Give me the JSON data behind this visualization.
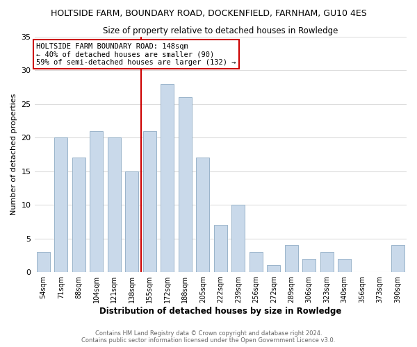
{
  "title": "HOLTSIDE FARM, BOUNDARY ROAD, DOCKENFIELD, FARNHAM, GU10 4ES",
  "subtitle": "Size of property relative to detached houses in Rowledge",
  "xlabel": "Distribution of detached houses by size in Rowledge",
  "ylabel": "Number of detached properties",
  "bar_labels": [
    "54sqm",
    "71sqm",
    "88sqm",
    "104sqm",
    "121sqm",
    "138sqm",
    "155sqm",
    "172sqm",
    "188sqm",
    "205sqm",
    "222sqm",
    "239sqm",
    "256sqm",
    "272sqm",
    "289sqm",
    "306sqm",
    "323sqm",
    "340sqm",
    "356sqm",
    "373sqm",
    "390sqm"
  ],
  "bar_values": [
    3,
    20,
    17,
    21,
    20,
    15,
    21,
    28,
    26,
    17,
    7,
    10,
    3,
    1,
    4,
    2,
    3,
    2,
    0,
    0,
    4
  ],
  "bar_color": "#c9d9ea",
  "bar_edgecolor": "#9ab4ca",
  "vline_x": 5.5,
  "vline_color": "#cc0000",
  "annotation_title": "HOLTSIDE FARM BOUNDARY ROAD: 148sqm",
  "annotation_line1": "← 40% of detached houses are smaller (90)",
  "annotation_line2": "59% of semi-detached houses are larger (132) →",
  "annotation_box_color": "#ffffff",
  "annotation_box_edgecolor": "#cc0000",
  "ylim": [
    0,
    35
  ],
  "yticks": [
    0,
    5,
    10,
    15,
    20,
    25,
    30,
    35
  ],
  "footer1": "Contains HM Land Registry data © Crown copyright and database right 2024.",
  "footer2": "Contains public sector information licensed under the Open Government Licence v3.0.",
  "background_color": "#ffffff",
  "grid_color": "#dddddd"
}
